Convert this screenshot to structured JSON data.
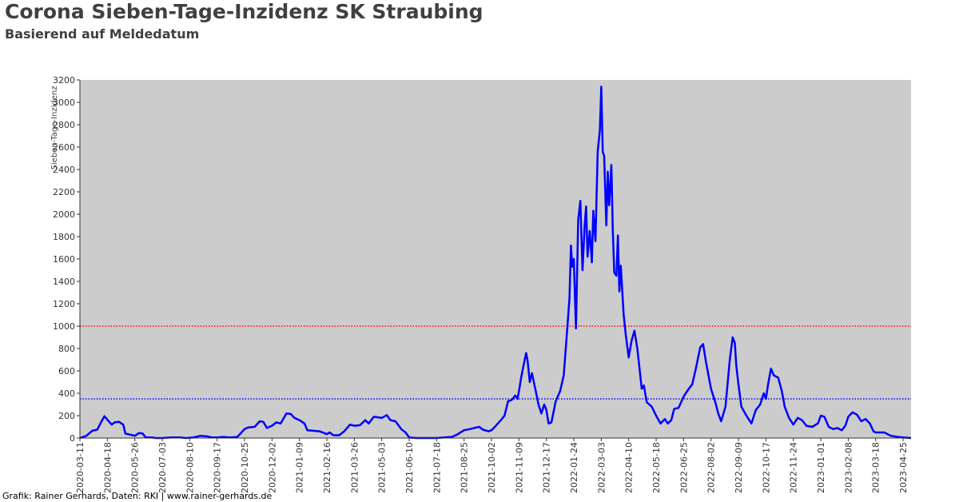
{
  "header": {
    "title": "Corona Sieben-Tage-Inzidenz SK Straubing",
    "subtitle": "Basierend auf Meldedatum"
  },
  "footer": "Grafik: Rainer Gerhards, Daten: RKI | www.rainer-gerhards.de",
  "chart_data": {
    "type": "line",
    "title": "Corona Sieben-Tage-Inzidenz SK Straubing",
    "subtitle": "Basierend auf Meldedatum",
    "xlabel": "",
    "ylabel": "Sieben-Tage-Inzidenz",
    "ylim": [
      0,
      3200
    ],
    "xlim": [
      "2020-03-11",
      "2023-05-06"
    ],
    "y_ticks": [
      0,
      200,
      400,
      600,
      800,
      1000,
      1200,
      1400,
      1600,
      1800,
      2000,
      2200,
      2400,
      2600,
      2800,
      3000,
      3200
    ],
    "x_ticks": [
      "2020-03-11",
      "2020-04-18",
      "2020-05-26",
      "2020-07-03",
      "2020-08-10",
      "2020-09-17",
      "2020-10-25",
      "2020-12-02",
      "2021-01-09",
      "2021-02-16",
      "2021-03-26",
      "2021-05-03",
      "2021-06-10",
      "2021-07-18",
      "2021-08-25",
      "2021-10-02",
      "2021-11-09",
      "2021-12-17",
      "2022-01-24",
      "2022-03-03",
      "2022-04-10",
      "2022-05-18",
      "2022-06-25",
      "2022-08-02",
      "2022-09-09",
      "2022-10-17",
      "2022-11-24",
      "2023-01-01",
      "2023-02-08",
      "2023-03-18",
      "2023-04-25"
    ],
    "grid": false,
    "background": "#cccccc",
    "reference_lines": [
      {
        "value": 1000,
        "color": "#ff0000",
        "style": "dotted"
      },
      {
        "value": 350,
        "color": "#0000ff",
        "style": "dotted"
      }
    ],
    "series": [
      {
        "color": "#0000ff",
        "points": [
          [
            "2020-03-11",
            0
          ],
          [
            "2020-03-20",
            20
          ],
          [
            "2020-03-28",
            65
          ],
          [
            "2020-04-04",
            75
          ],
          [
            "2020-04-10",
            150
          ],
          [
            "2020-04-14",
            195
          ],
          [
            "2020-04-18",
            165
          ],
          [
            "2020-04-24",
            120
          ],
          [
            "2020-04-28",
            140
          ],
          [
            "2020-05-04",
            145
          ],
          [
            "2020-05-10",
            120
          ],
          [
            "2020-05-13",
            40
          ],
          [
            "2020-05-20",
            30
          ],
          [
            "2020-05-26",
            20
          ],
          [
            "2020-06-01",
            45
          ],
          [
            "2020-06-06",
            40
          ],
          [
            "2020-06-10",
            5
          ],
          [
            "2020-06-18",
            5
          ],
          [
            "2020-06-25",
            0
          ],
          [
            "2020-07-03",
            0
          ],
          [
            "2020-07-15",
            5
          ],
          [
            "2020-07-28",
            5
          ],
          [
            "2020-08-05",
            0
          ],
          [
            "2020-08-15",
            5
          ],
          [
            "2020-08-25",
            20
          ],
          [
            "2020-09-03",
            15
          ],
          [
            "2020-09-10",
            5
          ],
          [
            "2020-09-17",
            5
          ],
          [
            "2020-09-25",
            10
          ],
          [
            "2020-10-05",
            5
          ],
          [
            "2020-10-15",
            10
          ],
          [
            "2020-10-25",
            80
          ],
          [
            "2020-10-30",
            95
          ],
          [
            "2020-11-08",
            100
          ],
          [
            "2020-11-15",
            150
          ],
          [
            "2020-11-20",
            145
          ],
          [
            "2020-11-25",
            90
          ],
          [
            "2020-12-02",
            110
          ],
          [
            "2020-12-08",
            140
          ],
          [
            "2020-12-14",
            130
          ],
          [
            "2020-12-22",
            220
          ],
          [
            "2020-12-28",
            215
          ],
          [
            "2021-01-02",
            180
          ],
          [
            "2021-01-09",
            160
          ],
          [
            "2021-01-16",
            130
          ],
          [
            "2021-01-20",
            70
          ],
          [
            "2021-01-28",
            65
          ],
          [
            "2021-02-06",
            60
          ],
          [
            "2021-02-16",
            35
          ],
          [
            "2021-02-20",
            50
          ],
          [
            "2021-02-25",
            25
          ],
          [
            "2021-03-05",
            25
          ],
          [
            "2021-03-12",
            60
          ],
          [
            "2021-03-20",
            120
          ],
          [
            "2021-03-26",
            110
          ],
          [
            "2021-04-03",
            115
          ],
          [
            "2021-04-10",
            160
          ],
          [
            "2021-04-15",
            130
          ],
          [
            "2021-04-22",
            190
          ],
          [
            "2021-05-03",
            180
          ],
          [
            "2021-05-10",
            205
          ],
          [
            "2021-05-15",
            160
          ],
          [
            "2021-05-22",
            150
          ],
          [
            "2021-05-30",
            80
          ],
          [
            "2021-06-05",
            50
          ],
          [
            "2021-06-10",
            5
          ],
          [
            "2021-06-20",
            0
          ],
          [
            "2021-07-05",
            0
          ],
          [
            "2021-07-18",
            0
          ],
          [
            "2021-07-28",
            5
          ],
          [
            "2021-08-08",
            10
          ],
          [
            "2021-08-15",
            30
          ],
          [
            "2021-08-25",
            70
          ],
          [
            "2021-09-02",
            80
          ],
          [
            "2021-09-08",
            90
          ],
          [
            "2021-09-15",
            100
          ],
          [
            "2021-09-20",
            75
          ],
          [
            "2021-09-28",
            60
          ],
          [
            "2021-10-02",
            70
          ],
          [
            "2021-10-08",
            110
          ],
          [
            "2021-10-15",
            160
          ],
          [
            "2021-10-20",
            200
          ],
          [
            "2021-10-25",
            330
          ],
          [
            "2021-10-30",
            340
          ],
          [
            "2021-11-04",
            380
          ],
          [
            "2021-11-07",
            350
          ],
          [
            "2021-11-09",
            420
          ],
          [
            "2021-11-12",
            540
          ],
          [
            "2021-11-17",
            700
          ],
          [
            "2021-11-19",
            760
          ],
          [
            "2021-11-21",
            690
          ],
          [
            "2021-11-24",
            500
          ],
          [
            "2021-11-27",
            580
          ],
          [
            "2021-11-29",
            520
          ],
          [
            "2021-12-02",
            430
          ],
          [
            "2021-12-06",
            300
          ],
          [
            "2021-12-10",
            220
          ],
          [
            "2021-12-14",
            300
          ],
          [
            "2021-12-17",
            250
          ],
          [
            "2021-12-20",
            130
          ],
          [
            "2021-12-24",
            140
          ],
          [
            "2021-12-30",
            330
          ],
          [
            "2022-01-05",
            420
          ],
          [
            "2022-01-10",
            560
          ],
          [
            "2022-01-14",
            900
          ],
          [
            "2022-01-18",
            1250
          ],
          [
            "2022-01-20",
            1720
          ],
          [
            "2022-01-22",
            1530
          ],
          [
            "2022-01-24",
            1600
          ],
          [
            "2022-01-27",
            980
          ],
          [
            "2022-01-30",
            1950
          ],
          [
            "2022-02-02",
            2120
          ],
          [
            "2022-02-05",
            1500
          ],
          [
            "2022-02-08",
            1900
          ],
          [
            "2022-02-10",
            2070
          ],
          [
            "2022-02-12",
            1620
          ],
          [
            "2022-02-15",
            1850
          ],
          [
            "2022-02-18",
            1570
          ],
          [
            "2022-02-20",
            2030
          ],
          [
            "2022-02-23",
            1760
          ],
          [
            "2022-02-26",
            2560
          ],
          [
            "2022-03-01",
            2750
          ],
          [
            "2022-03-03",
            3140
          ],
          [
            "2022-03-05",
            2560
          ],
          [
            "2022-03-07",
            2520
          ],
          [
            "2022-03-10",
            1900
          ],
          [
            "2022-03-12",
            2380
          ],
          [
            "2022-03-14",
            2080
          ],
          [
            "2022-03-17",
            2440
          ],
          [
            "2022-03-19",
            1860
          ],
          [
            "2022-03-21",
            1480
          ],
          [
            "2022-03-24",
            1450
          ],
          [
            "2022-03-26",
            1810
          ],
          [
            "2022-03-28",
            1310
          ],
          [
            "2022-03-30",
            1540
          ],
          [
            "2022-04-03",
            1100
          ],
          [
            "2022-04-06",
            920
          ],
          [
            "2022-04-10",
            720
          ],
          [
            "2022-04-14",
            870
          ],
          [
            "2022-04-18",
            960
          ],
          [
            "2022-04-22",
            800
          ],
          [
            "2022-04-28",
            440
          ],
          [
            "2022-05-01",
            470
          ],
          [
            "2022-05-05",
            320
          ],
          [
            "2022-05-12",
            280
          ],
          [
            "2022-05-18",
            200
          ],
          [
            "2022-05-24",
            130
          ],
          [
            "2022-05-30",
            170
          ],
          [
            "2022-06-03",
            130
          ],
          [
            "2022-06-08",
            160
          ],
          [
            "2022-06-12",
            260
          ],
          [
            "2022-06-18",
            270
          ],
          [
            "2022-06-25",
            370
          ],
          [
            "2022-07-01",
            430
          ],
          [
            "2022-07-07",
            480
          ],
          [
            "2022-07-12",
            620
          ],
          [
            "2022-07-18",
            810
          ],
          [
            "2022-07-22",
            840
          ],
          [
            "2022-07-26",
            680
          ],
          [
            "2022-08-02",
            440
          ],
          [
            "2022-08-08",
            320
          ],
          [
            "2022-08-12",
            220
          ],
          [
            "2022-08-16",
            150
          ],
          [
            "2022-08-22",
            280
          ],
          [
            "2022-08-28",
            700
          ],
          [
            "2022-09-01",
            900
          ],
          [
            "2022-09-04",
            850
          ],
          [
            "2022-09-06",
            650
          ],
          [
            "2022-09-09",
            480
          ],
          [
            "2022-09-13",
            280
          ],
          [
            "2022-09-20",
            200
          ],
          [
            "2022-09-27",
            130
          ],
          [
            "2022-10-03",
            250
          ],
          [
            "2022-10-09",
            300
          ],
          [
            "2022-10-14",
            400
          ],
          [
            "2022-10-17",
            350
          ],
          [
            "2022-10-20",
            480
          ],
          [
            "2022-10-24",
            620
          ],
          [
            "2022-10-28",
            560
          ],
          [
            "2022-11-03",
            540
          ],
          [
            "2022-11-08",
            420
          ],
          [
            "2022-11-12",
            280
          ],
          [
            "2022-11-18",
            180
          ],
          [
            "2022-11-24",
            120
          ],
          [
            "2022-11-30",
            180
          ],
          [
            "2022-12-06",
            160
          ],
          [
            "2022-12-12",
            110
          ],
          [
            "2022-12-20",
            100
          ],
          [
            "2022-12-28",
            130
          ],
          [
            "2023-01-01",
            200
          ],
          [
            "2023-01-06",
            190
          ],
          [
            "2023-01-12",
            100
          ],
          [
            "2023-01-18",
            80
          ],
          [
            "2023-01-24",
            90
          ],
          [
            "2023-01-30",
            70
          ],
          [
            "2023-02-04",
            110
          ],
          [
            "2023-02-08",
            190
          ],
          [
            "2023-02-14",
            230
          ],
          [
            "2023-02-20",
            210
          ],
          [
            "2023-02-26",
            150
          ],
          [
            "2023-03-04",
            170
          ],
          [
            "2023-03-10",
            130
          ],
          [
            "2023-03-15",
            60
          ],
          [
            "2023-03-18",
            50
          ],
          [
            "2023-03-30",
            50
          ],
          [
            "2023-04-08",
            20
          ],
          [
            "2023-04-18",
            10
          ],
          [
            "2023-04-25",
            5
          ],
          [
            "2023-05-06",
            0
          ]
        ]
      }
    ]
  }
}
